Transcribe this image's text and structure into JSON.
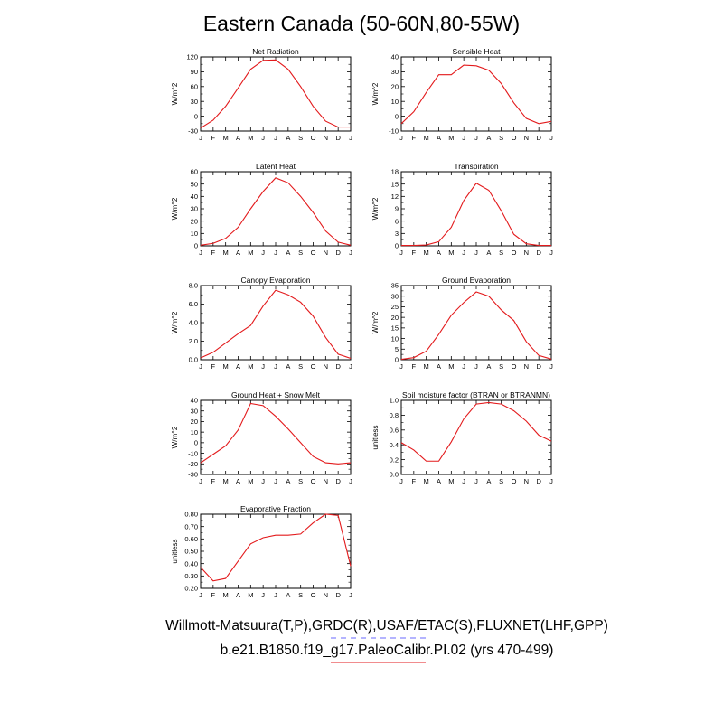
{
  "title": "Eastern Canada (50-60N,80-55W)",
  "footer": {
    "obs_label": "Willmott-Matsuura(T,P),GRDC(R),USAF/ETAC(S),FLUXNET(LHF,GPP)",
    "model_label": "b.e21.B1850.f19_g17.PaleoCalibr.PI.02 (yrs 470-499)",
    "obs_line_color": "#6a6aff",
    "model_line_color": "#e31a1c"
  },
  "chart_data": [
    {
      "type": "line",
      "title": "Net Radiation",
      "ylabel": "W/m^2",
      "categories": [
        "J",
        "F",
        "M",
        "A",
        "M",
        "J",
        "J",
        "A",
        "S",
        "O",
        "N",
        "D",
        "J"
      ],
      "ylim": [
        -30,
        120
      ],
      "yticks": [
        -30,
        0,
        30,
        60,
        90,
        120
      ],
      "ytick_labels": [
        "-30",
        "0",
        "30",
        "60",
        "90",
        "120"
      ],
      "values": [
        -24,
        -8,
        20,
        57,
        95,
        113,
        114,
        95,
        60,
        20,
        -10,
        -22,
        -22
      ],
      "color": "#e31a1c"
    },
    {
      "type": "line",
      "title": "Sensible Heat",
      "ylabel": "W/m^2",
      "categories": [
        "J",
        "F",
        "M",
        "A",
        "M",
        "J",
        "J",
        "A",
        "S",
        "O",
        "N",
        "D",
        "J"
      ],
      "ylim": [
        -10,
        40
      ],
      "yticks": [
        -10,
        0,
        10,
        20,
        30,
        40
      ],
      "ytick_labels": [
        "-10",
        "0",
        "10",
        "20",
        "30",
        "40"
      ],
      "values": [
        -5,
        3,
        16,
        28,
        28,
        34.5,
        34,
        31,
        22,
        9,
        -1.5,
        -5,
        -3.5
      ],
      "color": "#e31a1c"
    },
    {
      "type": "line",
      "title": "Latent Heat",
      "ylabel": "W/m^2",
      "categories": [
        "J",
        "F",
        "M",
        "A",
        "M",
        "J",
        "J",
        "A",
        "S",
        "O",
        "N",
        "D",
        "J"
      ],
      "ylim": [
        0,
        60
      ],
      "yticks": [
        0,
        10,
        20,
        30,
        40,
        50,
        60
      ],
      "ytick_labels": [
        "0",
        "10",
        "20",
        "30",
        "40",
        "50",
        "60"
      ],
      "values": [
        0.5,
        2,
        6,
        15,
        30,
        44,
        55,
        51,
        40,
        27,
        12,
        3,
        0.5
      ],
      "color": "#e31a1c"
    },
    {
      "type": "line",
      "title": "Transpiration",
      "ylabel": "W/m^2",
      "categories": [
        "J",
        "F",
        "M",
        "A",
        "M",
        "J",
        "J",
        "A",
        "S",
        "O",
        "N",
        "D",
        "J"
      ],
      "ylim": [
        0,
        18
      ],
      "yticks": [
        0,
        3,
        6,
        9,
        12,
        15,
        18
      ],
      "ytick_labels": [
        "0",
        "3",
        "6",
        "9",
        "12",
        "15",
        "18"
      ],
      "values": [
        0.1,
        0.1,
        0.2,
        1,
        4.5,
        11,
        15.2,
        13.5,
        8.5,
        2.8,
        0.5,
        0.1,
        0.1
      ],
      "color": "#e31a1c"
    },
    {
      "type": "line",
      "title": "Canopy Evaporation",
      "ylabel": "W/m^2",
      "categories": [
        "J",
        "F",
        "M",
        "A",
        "M",
        "J",
        "J",
        "A",
        "S",
        "O",
        "N",
        "D",
        "J"
      ],
      "ylim": [
        0,
        8
      ],
      "yticks": [
        0,
        2,
        4,
        6,
        8
      ],
      "ytick_labels": [
        "0.0",
        "2.0",
        "4.0",
        "6.0",
        "8.0"
      ],
      "values": [
        0.2,
        0.8,
        1.8,
        2.8,
        3.7,
        5.8,
        7.5,
        7,
        6.2,
        4.7,
        2.4,
        0.6,
        0.15
      ],
      "color": "#e31a1c"
    },
    {
      "type": "line",
      "title": "Ground Evaporation",
      "ylabel": "W/m^2",
      "categories": [
        "J",
        "F",
        "M",
        "A",
        "M",
        "J",
        "J",
        "A",
        "S",
        "O",
        "N",
        "D",
        "J"
      ],
      "ylim": [
        0,
        35
      ],
      "yticks": [
        0,
        5,
        10,
        15,
        20,
        25,
        30,
        35
      ],
      "ytick_labels": [
        "0",
        "5",
        "10",
        "15",
        "20",
        "25",
        "30",
        "35"
      ],
      "values": [
        0.2,
        1,
        4,
        12,
        21,
        27,
        32,
        30,
        23.5,
        18.5,
        8.5,
        2,
        0.3
      ],
      "color": "#e31a1c"
    },
    {
      "type": "line",
      "title": "Ground Heat + Snow Melt",
      "ylabel": "W/m^2",
      "categories": [
        "J",
        "F",
        "M",
        "A",
        "M",
        "J",
        "J",
        "A",
        "S",
        "O",
        "N",
        "D",
        "J"
      ],
      "ylim": [
        -30,
        40
      ],
      "yticks": [
        -30,
        -20,
        -10,
        0,
        10,
        20,
        30,
        40
      ],
      "ytick_labels": [
        "-30",
        "-20",
        "-10",
        "0",
        "10",
        "20",
        "30",
        "40"
      ],
      "values": [
        -19,
        -11,
        -3,
        12,
        37,
        35,
        25,
        13,
        0,
        -13,
        -19,
        -20,
        -19
      ],
      "color": "#e31a1c"
    },
    {
      "type": "line",
      "title": "Soil moisture factor (BTRAN or BTRANMN)",
      "ylabel": "unitless",
      "categories": [
        "J",
        "F",
        "M",
        "A",
        "M",
        "J",
        "J",
        "A",
        "S",
        "O",
        "N",
        "D",
        "J"
      ],
      "ylim": [
        0,
        1
      ],
      "yticks": [
        0,
        0.2,
        0.4,
        0.6,
        0.8,
        1.0
      ],
      "ytick_labels": [
        "0.0",
        "0.2",
        "0.4",
        "0.6",
        "0.8",
        "1.0"
      ],
      "values": [
        0.43,
        0.33,
        0.18,
        0.18,
        0.44,
        0.75,
        0.95,
        0.97,
        0.95,
        0.86,
        0.72,
        0.53,
        0.45
      ],
      "color": "#e31a1c"
    },
    {
      "type": "line",
      "title": "Evaporative Fraction",
      "ylabel": "unitless",
      "categories": [
        "J",
        "F",
        "M",
        "A",
        "M",
        "J",
        "J",
        "A",
        "S",
        "O",
        "N",
        "D",
        "J"
      ],
      "ylim": [
        0.2,
        0.8
      ],
      "yticks": [
        0.2,
        0.3,
        0.4,
        0.5,
        0.6,
        0.7,
        0.8
      ],
      "ytick_labels": [
        "0.20",
        "0.30",
        "0.40",
        "0.50",
        "0.60",
        "0.70",
        "0.80"
      ],
      "values": [
        0.37,
        0.26,
        0.28,
        0.42,
        0.56,
        0.61,
        0.63,
        0.63,
        0.64,
        0.73,
        0.8,
        0.79,
        0.38
      ],
      "color": "#e31a1c"
    }
  ]
}
